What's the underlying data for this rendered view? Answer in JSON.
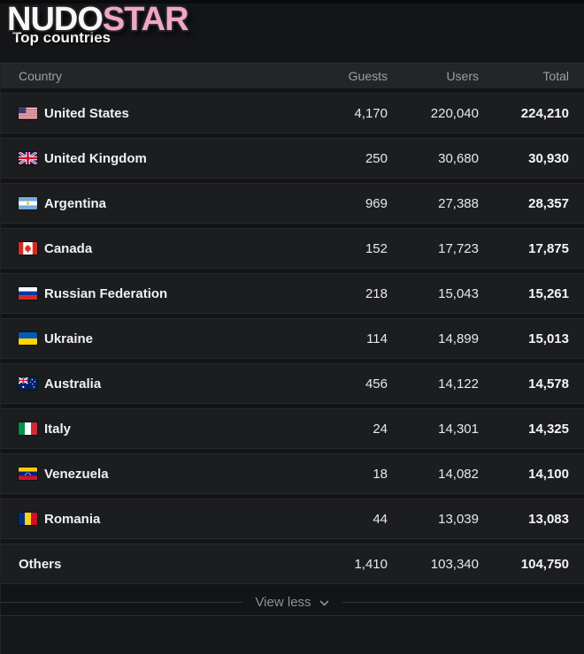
{
  "brand": {
    "logo_white": "NUDO",
    "logo_pink": "STAR"
  },
  "panel": {
    "title": "Top countries"
  },
  "table": {
    "columns": [
      "Country",
      "Guests",
      "Users",
      "Total"
    ],
    "rows": [
      {
        "country": "United States",
        "flag": "us",
        "guests": "4,170",
        "users": "220,040",
        "total": "224,210"
      },
      {
        "country": "United Kingdom",
        "flag": "gb",
        "guests": "250",
        "users": "30,680",
        "total": "30,930"
      },
      {
        "country": "Argentina",
        "flag": "ar",
        "guests": "969",
        "users": "27,388",
        "total": "28,357"
      },
      {
        "country": "Canada",
        "flag": "ca",
        "guests": "152",
        "users": "17,723",
        "total": "17,875"
      },
      {
        "country": "Russian Federation",
        "flag": "ru",
        "guests": "218",
        "users": "15,043",
        "total": "15,261"
      },
      {
        "country": "Ukraine",
        "flag": "ua",
        "guests": "114",
        "users": "14,899",
        "total": "15,013"
      },
      {
        "country": "Australia",
        "flag": "au",
        "guests": "456",
        "users": "14,122",
        "total": "14,578"
      },
      {
        "country": "Italy",
        "flag": "it",
        "guests": "24",
        "users": "14,301",
        "total": "14,325"
      },
      {
        "country": "Venezuela",
        "flag": "ve",
        "guests": "18",
        "users": "14,082",
        "total": "14,100"
      },
      {
        "country": "Romania",
        "flag": "ro",
        "guests": "44",
        "users": "13,039",
        "total": "13,083"
      },
      {
        "country": "Others",
        "flag": null,
        "guests": "1,410",
        "users": "103,340",
        "total": "104,750"
      }
    ]
  },
  "footer": {
    "view_less_label": "View less",
    "icon": "chevron-down-icon"
  },
  "colors": {
    "brand_pink": "#f1a6c5",
    "header_row_bg": "#232528",
    "row_bg": "#1c1d1f",
    "page_bg": "#141517",
    "muted_text": "#9aa0a6"
  }
}
